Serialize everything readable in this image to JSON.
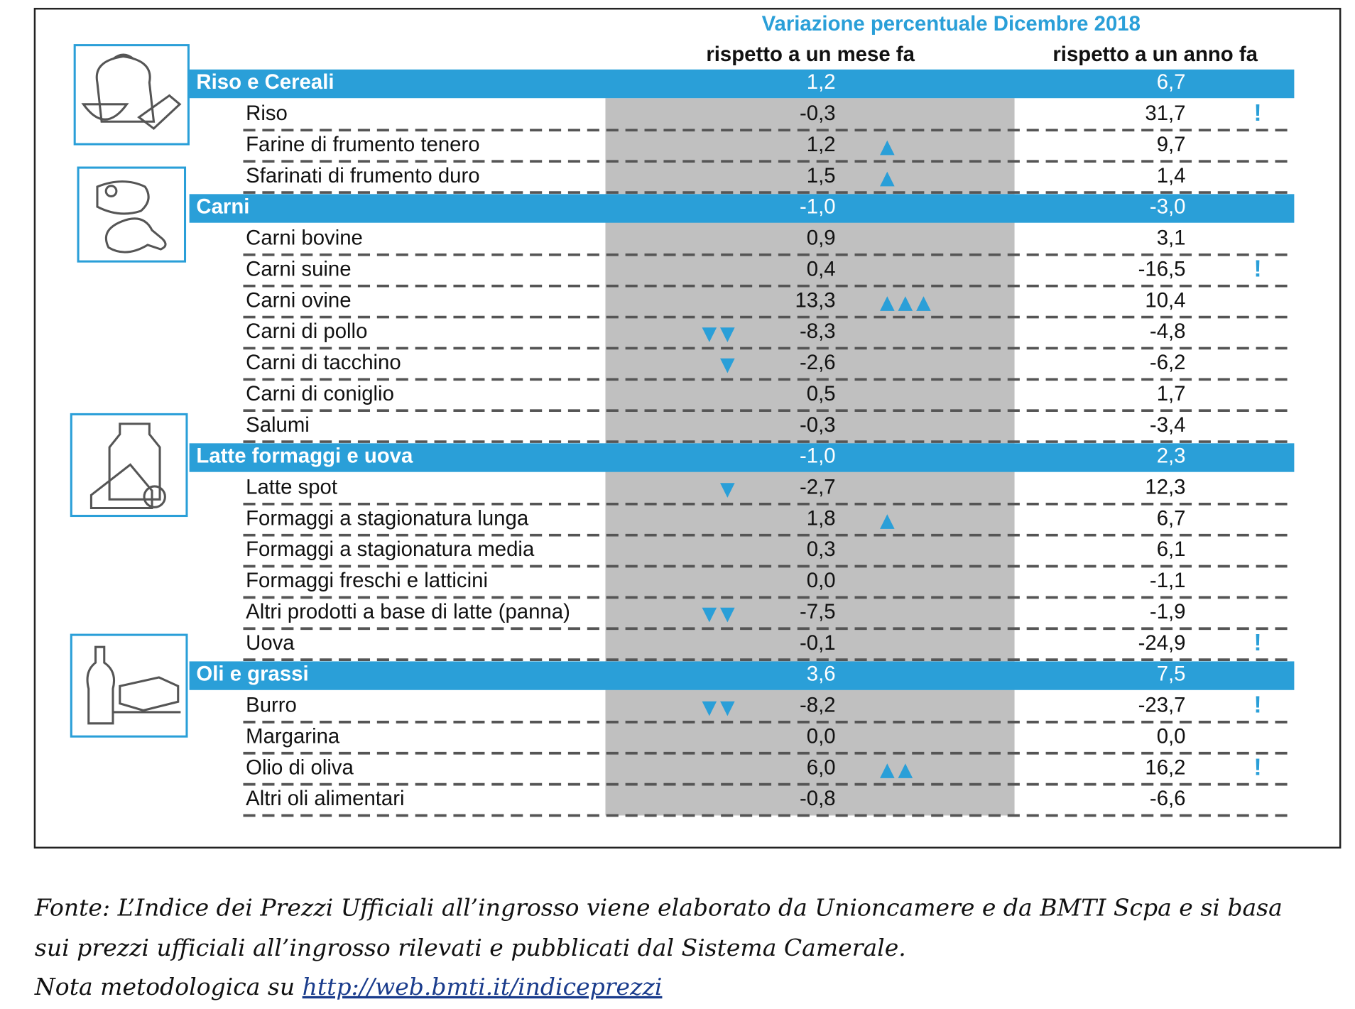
{
  "header": {
    "title": "Variazione percentuale Dicembre 2018",
    "col_month": "rispetto a un mese fa",
    "col_year": "rispetto a un anno fa"
  },
  "groups": [
    {
      "name": "Riso e Cereali",
      "month": "1,2",
      "year": "6,7",
      "items": [
        {
          "name": "Riso",
          "month": "-0,3",
          "year": "31,7",
          "flag": "!"
        },
        {
          "name": "Farine di frumento tenero",
          "month": "1,2",
          "year": "9,7",
          "indicator": "▲"
        },
        {
          "name": "Sfarinati di frumento duro",
          "month": "1,5",
          "year": "1,4",
          "indicator": "▲"
        }
      ]
    },
    {
      "name": "Carni",
      "month": "-1,0",
      "year": "-3,0",
      "items": [
        {
          "name": "Carni bovine",
          "month": "0,9",
          "year": "3,1"
        },
        {
          "name": "Carni suine",
          "month": "0,4",
          "year": "-16,5",
          "flag": "!"
        },
        {
          "name": "Carni ovine",
          "month": "13,3",
          "year": "10,4",
          "indicator": "▲▲▲"
        },
        {
          "name": "Carni di pollo",
          "month": "-8,3",
          "year": "-4,8",
          "indicator": "▼▼"
        },
        {
          "name": "Carni di tacchino",
          "month": "-2,6",
          "year": "-6,2",
          "indicator": "▼"
        },
        {
          "name": "Carni di coniglio",
          "month": "0,5",
          "year": "1,7"
        },
        {
          "name": "Salumi",
          "month": "-0,3",
          "year": "-3,4"
        }
      ]
    },
    {
      "name": "Latte formaggi e uova",
      "month": "-1,0",
      "year": "2,3",
      "items": [
        {
          "name": "Latte spot",
          "month": "-2,7",
          "year": "12,3",
          "indicator": "▼"
        },
        {
          "name": "Formaggi a stagionatura lunga",
          "month": "1,8",
          "year": "6,7",
          "indicator": "▲"
        },
        {
          "name": "Formaggi a stagionatura media",
          "month": "0,3",
          "year": "6,1"
        },
        {
          "name": "Formaggi freschi e latticini",
          "month": "0,0",
          "year": "-1,1"
        },
        {
          "name": "Altri prodotti a base di latte (panna)",
          "month": "-7,5",
          "year": "-1,9",
          "indicator": "▼▼"
        },
        {
          "name": "Uova",
          "month": "-0,1",
          "year": "-24,9",
          "flag": "!"
        }
      ]
    },
    {
      "name": "Oli e grassi",
      "month": "3,6",
      "year": "7,5",
      "items": [
        {
          "name": "Burro",
          "month": "-8,2",
          "year": "-23,7",
          "indicator": "▼▼",
          "flag": "!"
        },
        {
          "name": "Margarina",
          "month": "0,0",
          "year": "0,0"
        },
        {
          "name": "Olio di oliva",
          "month": "6,0",
          "year": "16,2",
          "indicator": "▲▲",
          "flag": "!"
        },
        {
          "name": "Altri oli alimentari",
          "month": "-0,8",
          "year": "-6,6"
        }
      ]
    }
  ],
  "footer": {
    "lines": [
      "Fonte: L’Indice dei Prezzi Ufficiali all’ingrosso viene elaborato da Unioncamere e da BMTI Scpa e si basa",
      "sui prezzi ufficiali all’ingrosso rilevati e pubblicati dal Sistema Camerale."
    ],
    "note": "Nota metodologica su ",
    "link": "http://web.bmti.it/indiceprezzi"
  }
}
